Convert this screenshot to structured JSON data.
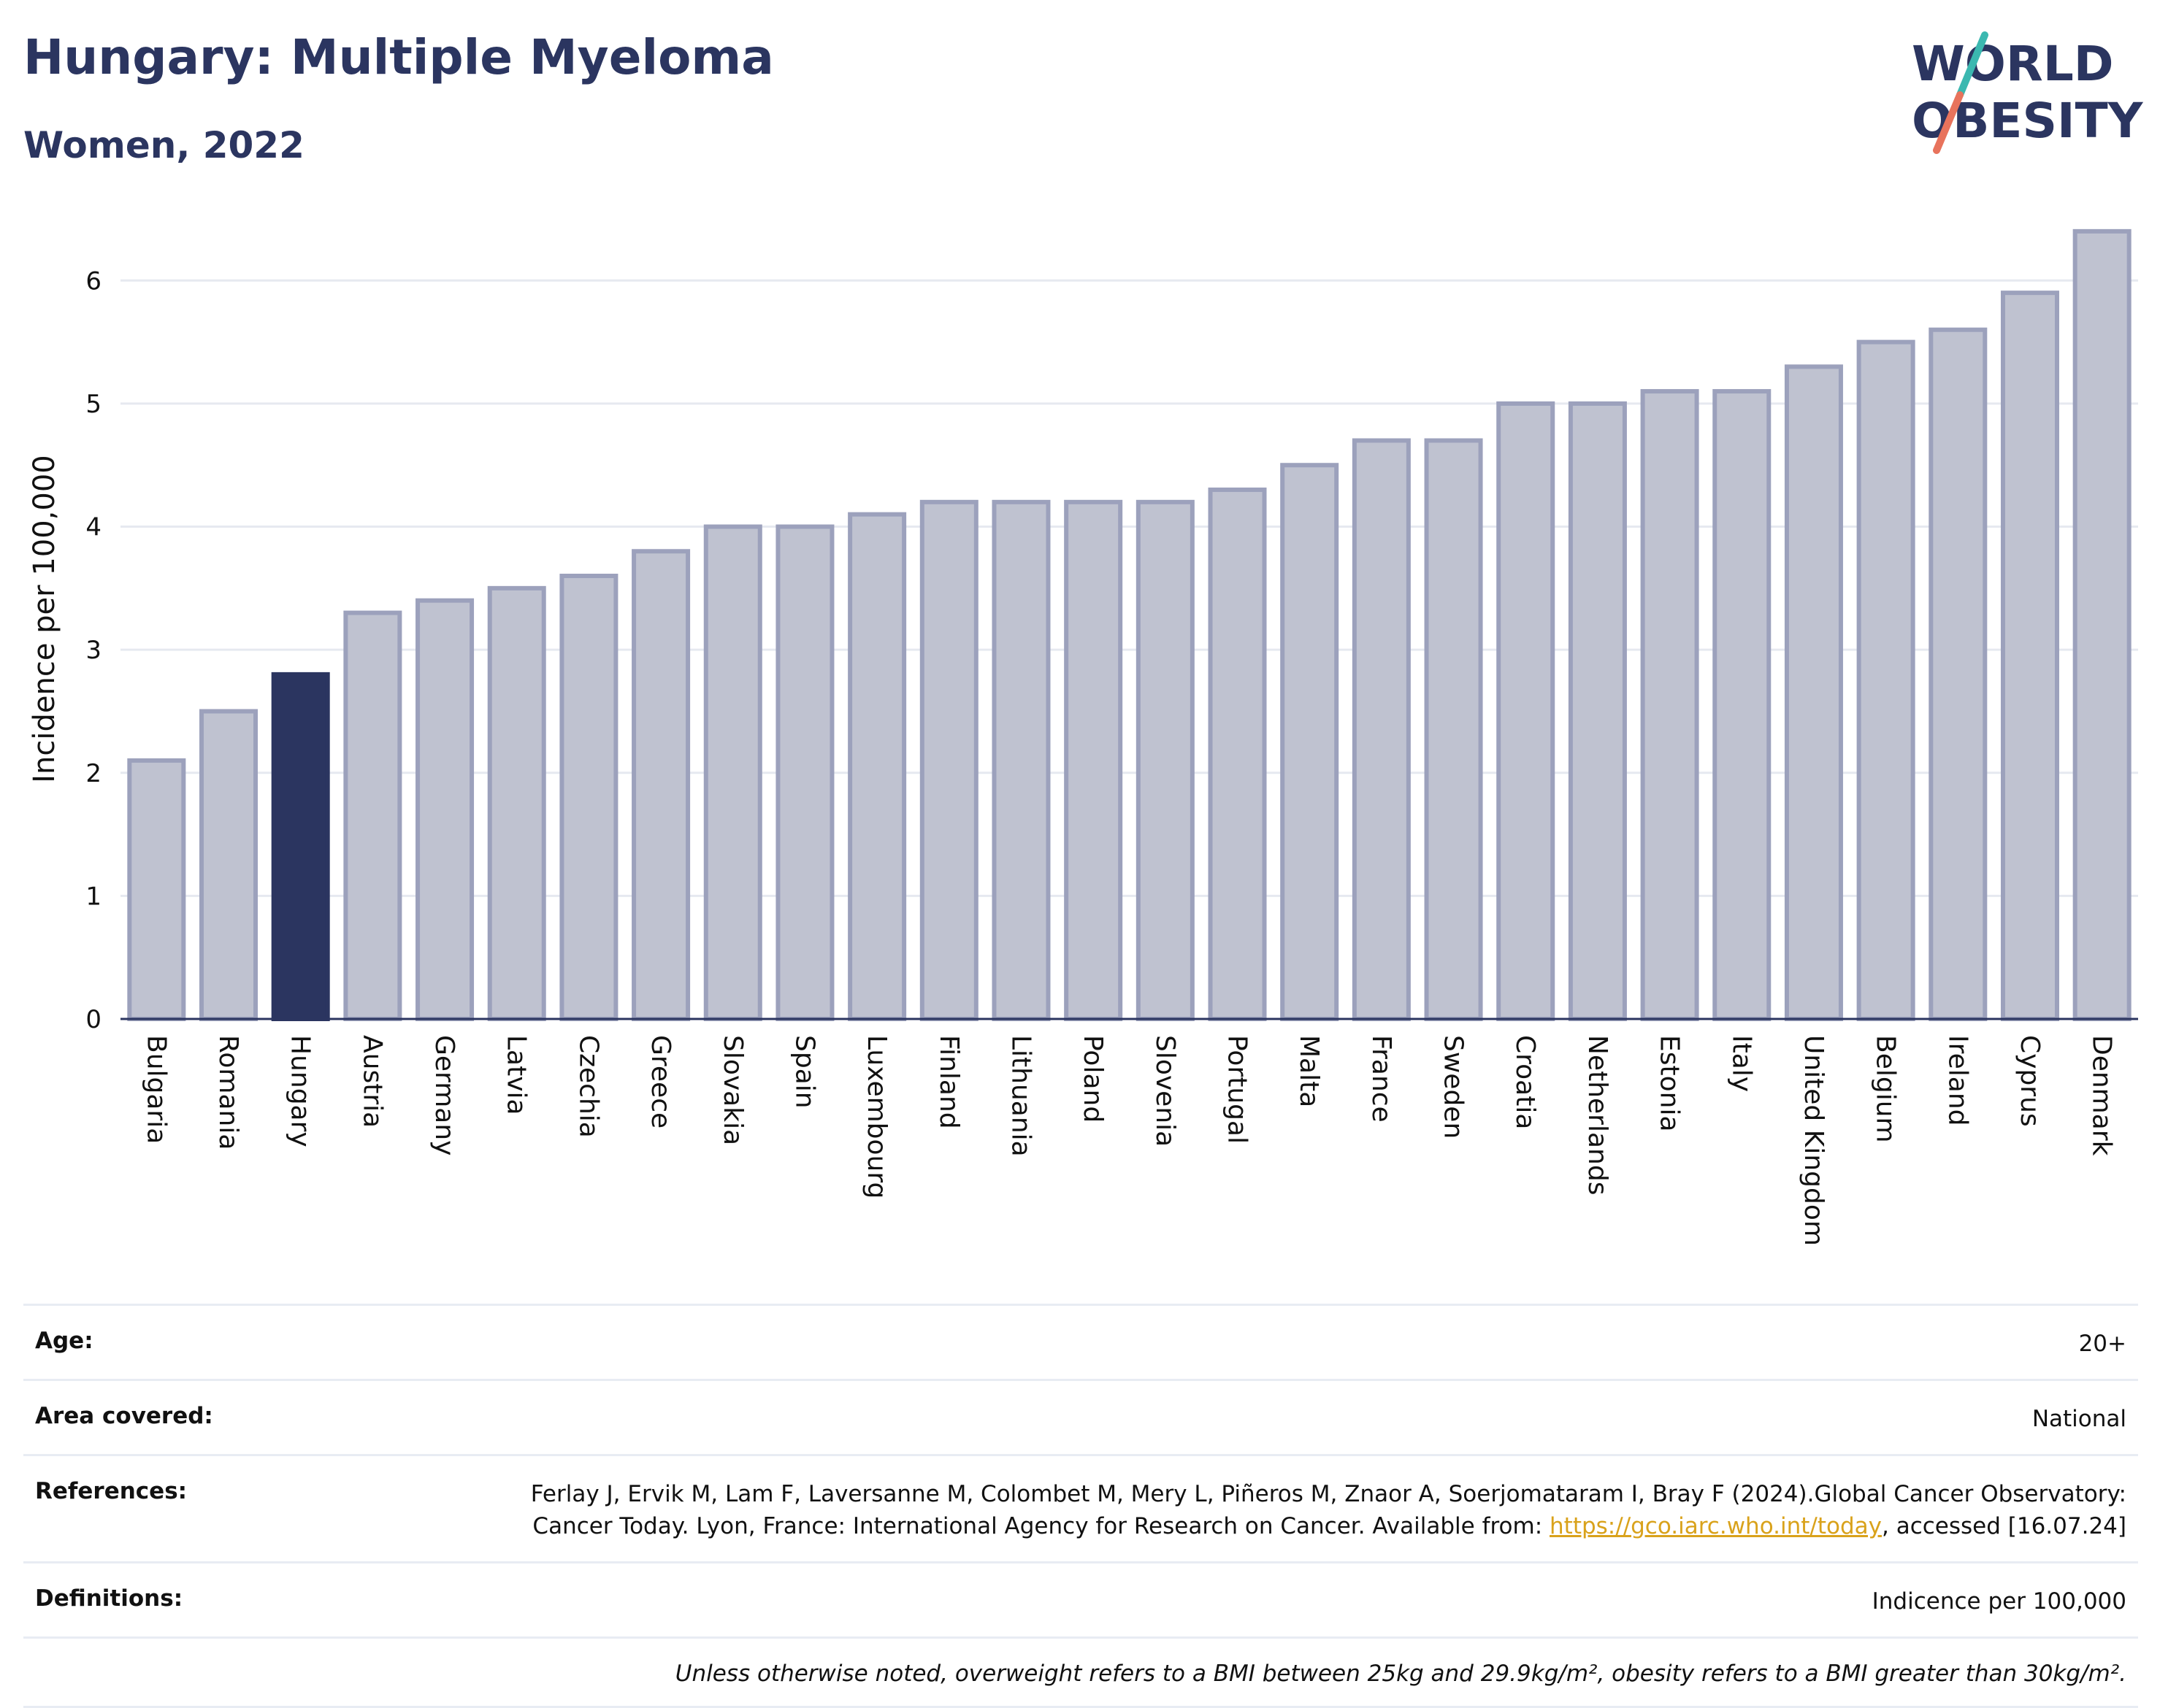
{
  "header": {
    "title": "Hungary: Multiple Myeloma",
    "subtitle": "Women, 2022"
  },
  "logo": {
    "line1": "WORLD",
    "line2": "OBESITY",
    "colors": {
      "text": "#2b3560",
      "slash_top": "#3bb8b0",
      "slash_bottom": "#e8735c"
    }
  },
  "chart_data": {
    "type": "bar",
    "ylabel": "Incidence per 100,000",
    "xlabel": "",
    "ylim": [
      0,
      6.5
    ],
    "yticks": [
      0,
      1,
      2,
      3,
      4,
      5,
      6
    ],
    "grid": true,
    "categories": [
      "Bulgaria",
      "Romania",
      "Hungary",
      "Austria",
      "Germany",
      "Latvia",
      "Czechia",
      "Greece",
      "Slovakia",
      "Spain",
      "Luxembourg",
      "Finland",
      "Lithuania",
      "Poland",
      "Slovenia",
      "Portugal",
      "Malta",
      "France",
      "Sweden",
      "Croatia",
      "Netherlands",
      "Estonia",
      "Italy",
      "United Kingdom",
      "Belgium",
      "Ireland",
      "Cyprus",
      "Denmark"
    ],
    "values": [
      2.1,
      2.5,
      2.8,
      3.3,
      3.4,
      3.5,
      3.6,
      3.8,
      4.0,
      4.0,
      4.1,
      4.2,
      4.2,
      4.2,
      4.2,
      4.3,
      4.5,
      4.7,
      4.7,
      5.0,
      5.0,
      5.1,
      5.1,
      5.3,
      5.5,
      5.6,
      5.9,
      6.4
    ],
    "highlight": "Hungary",
    "colors": {
      "bar": "#bfc2d0",
      "bar_border": "#9ca1bc",
      "highlight": "#2b3560"
    }
  },
  "meta": {
    "age": {
      "label": "Age:",
      "value": "20+"
    },
    "area": {
      "label": "Area covered:",
      "value": "National"
    },
    "references": {
      "label": "References:",
      "text": "Ferlay J, Ervik M, Lam F, Laversanne M, Colombet M, Mery L, Piñeros M, Znaor A, Soerjomataram I, Bray F (2024).Global Cancer Observatory: Cancer Today. Lyon, France: International Agency for Research on Cancer. Available from: ",
      "link": "https://gco.iarc.who.int/today",
      "after": ", accessed [16.07.24]"
    },
    "definitions": {
      "label": "Definitions:",
      "value": "Indicence per 100,000"
    },
    "note": "Unless otherwise noted, overweight refers to a BMI between 25kg and 29.9kg/m², obesity refers to a BMI greater than 30kg/m²."
  }
}
